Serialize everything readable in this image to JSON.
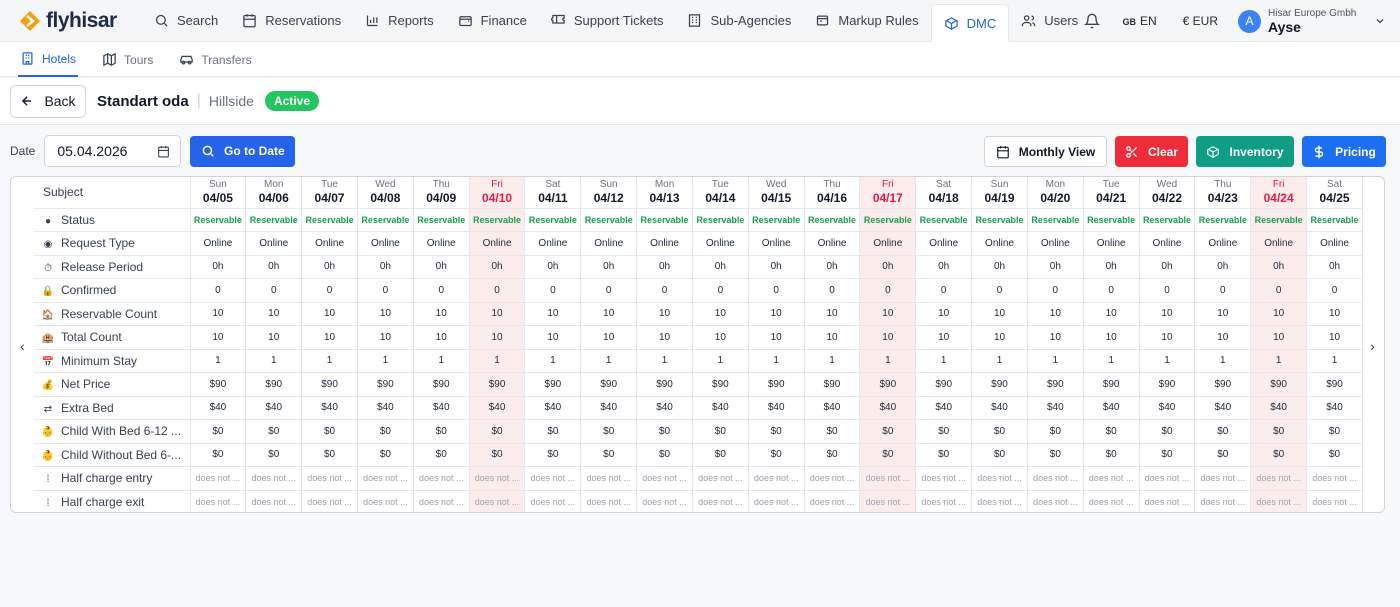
{
  "brand": {
    "name": "flyhisar"
  },
  "topnav": {
    "items": [
      {
        "label": "Search",
        "icon": "search-icon"
      },
      {
        "label": "Reservations",
        "icon": "calendar-icon"
      },
      {
        "label": "Reports",
        "icon": "bar-chart-icon"
      },
      {
        "label": "Finance",
        "icon": "wallet-icon"
      },
      {
        "label": "Support Tickets",
        "icon": "ticket-icon"
      },
      {
        "label": "Sub-Agencies",
        "icon": "building-icon"
      },
      {
        "label": "Markup Rules",
        "icon": "tag-icon"
      },
      {
        "label": "DMC",
        "icon": "cube-icon",
        "active": true
      },
      {
        "label": "Users",
        "icon": "users-icon"
      }
    ],
    "lang_code": "GB",
    "lang": "EN",
    "currency": "€ EUR",
    "user_org": "Hisar Europe Gmbh",
    "user_name": "Ayse",
    "avatar_initial": "A"
  },
  "subnav": {
    "items": [
      {
        "label": "Hotels",
        "icon": "hotel-icon",
        "active": true
      },
      {
        "label": "Tours",
        "icon": "map-icon"
      },
      {
        "label": "Transfers",
        "icon": "car-icon"
      }
    ]
  },
  "header": {
    "back_label": "Back",
    "room_name": "Standart oda",
    "hotel_name": "Hillside",
    "status": "Active"
  },
  "toolbar": {
    "date_label": "Date",
    "date_value": "05.04.2026",
    "goto_label": "Go to Date",
    "monthly_label": "Monthly View",
    "clear_label": "Clear",
    "inventory_label": "Inventory",
    "pricing_label": "Pricing"
  },
  "grid": {
    "subject_header": "Subject",
    "days": [
      {
        "dow": "Sun",
        "date": "04/05"
      },
      {
        "dow": "Mon",
        "date": "04/06"
      },
      {
        "dow": "Tue",
        "date": "04/07"
      },
      {
        "dow": "Wed",
        "date": "04/08"
      },
      {
        "dow": "Thu",
        "date": "04/09"
      },
      {
        "dow": "Fri",
        "date": "04/10"
      },
      {
        "dow": "Sat",
        "date": "04/11"
      },
      {
        "dow": "Sun",
        "date": "04/12"
      },
      {
        "dow": "Mon",
        "date": "04/13"
      },
      {
        "dow": "Tue",
        "date": "04/14"
      },
      {
        "dow": "Wed",
        "date": "04/15"
      },
      {
        "dow": "Thu",
        "date": "04/16"
      },
      {
        "dow": "Fri",
        "date": "04/17"
      },
      {
        "dow": "Sat",
        "date": "04/18"
      },
      {
        "dow": "Sun",
        "date": "04/19"
      },
      {
        "dow": "Mon",
        "date": "04/20"
      },
      {
        "dow": "Tue",
        "date": "04/21"
      },
      {
        "dow": "Wed",
        "date": "04/22"
      },
      {
        "dow": "Thu",
        "date": "04/23"
      },
      {
        "dow": "Fri",
        "date": "04/24"
      },
      {
        "dow": "Sat",
        "date": "04/25"
      }
    ],
    "rows": [
      {
        "label": "Status",
        "icon": "dot-icon",
        "glyph": "●",
        "value": "Reservable",
        "kind": "status"
      },
      {
        "label": "Request Type",
        "icon": "radio-icon",
        "glyph": "◉",
        "value": "Online"
      },
      {
        "label": "Release Period",
        "icon": "clock-icon",
        "glyph": "⏱",
        "value": "0h"
      },
      {
        "label": "Confirmed",
        "icon": "lock-icon",
        "glyph": "🔒",
        "value": "0"
      },
      {
        "label": "Reservable Count",
        "icon": "house-icon",
        "glyph": "🏠",
        "value": "10"
      },
      {
        "label": "Total Count",
        "icon": "hotel-building-icon",
        "glyph": "🏨",
        "value": "10"
      },
      {
        "label": "Minimum Stay",
        "icon": "calendar-small-icon",
        "glyph": "📅",
        "value": "1"
      },
      {
        "label": "Net Price",
        "icon": "money-bag-icon",
        "glyph": "💰",
        "value": "$90"
      },
      {
        "label": "Extra Bed",
        "icon": "swap-icon",
        "glyph": "⇄",
        "value": "$40"
      },
      {
        "label": "Child With Bed 6-12 ...",
        "icon": "child-icon",
        "glyph": "👶",
        "value": "$0"
      },
      {
        "label": "Child Without Bed 6-...",
        "icon": "child-icon",
        "glyph": "👶",
        "value": "$0"
      },
      {
        "label": "Half charge entry",
        "icon": "bar-icon",
        "glyph": "⁞",
        "value": "does not ...",
        "kind": "dn"
      },
      {
        "label": "Half charge exit",
        "icon": "bar-icon",
        "glyph": "⁞",
        "value": "does not ...",
        "kind": "dn"
      }
    ]
  }
}
